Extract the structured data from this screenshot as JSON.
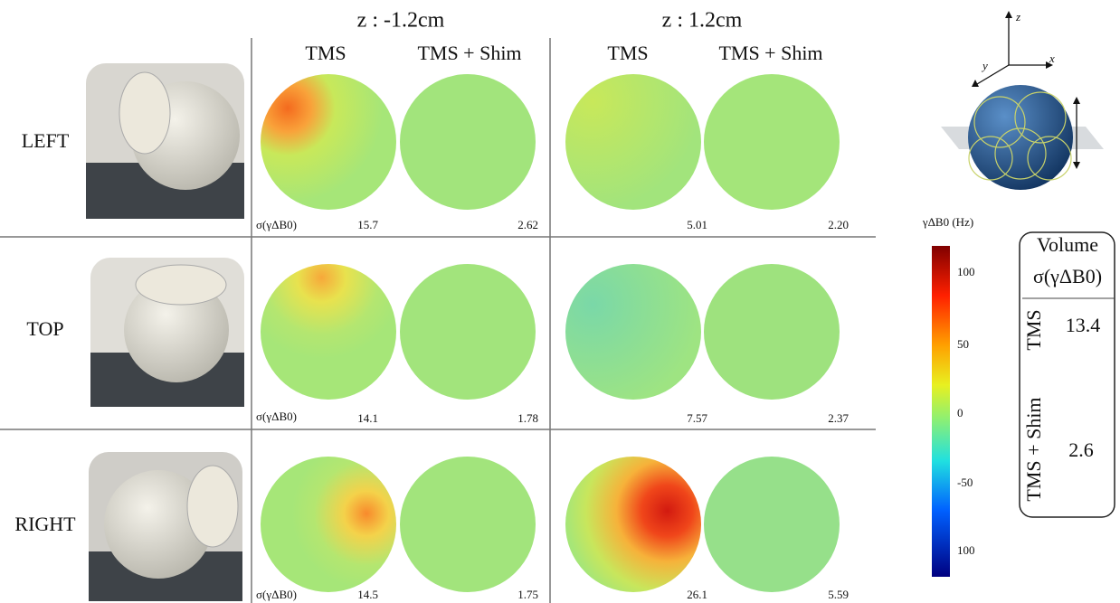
{
  "header": {
    "columns": [
      {
        "title": "z : -1.2cm",
        "sub": [
          "TMS",
          "TMS + Shim"
        ]
      },
      {
        "title": "z : 1.2cm",
        "sub": [
          "TMS",
          "TMS + Shim"
        ]
      }
    ]
  },
  "rows": [
    {
      "label": "LEFT",
      "sigma_label": "σ(γΔB0)",
      "values": [
        "15.7",
        "2.62",
        "5.01",
        "2.20"
      ]
    },
    {
      "label": "TOP",
      "sigma_label": "σ(γΔB0)",
      "values": [
        "14.1",
        "1.78",
        "7.57",
        "2.37"
      ]
    },
    {
      "label": "RIGHT",
      "sigma_label": "σ(γΔB0)",
      "values": [
        "14.5",
        "1.75",
        "26.1",
        "5.59"
      ]
    }
  ],
  "colorbar": {
    "label": "γΔB0 (Hz)",
    "ticks": [
      "100",
      "50",
      "0",
      "-50",
      "100"
    ]
  },
  "volume": {
    "title": "Volume",
    "metric": "σ(γΔB0)",
    "rows": [
      {
        "label": "TMS",
        "value": "13.4"
      },
      {
        "label": "TMS + Shim",
        "value": "2.6"
      }
    ]
  },
  "axes": {
    "z": "z",
    "y": "y",
    "x": "x"
  }
}
